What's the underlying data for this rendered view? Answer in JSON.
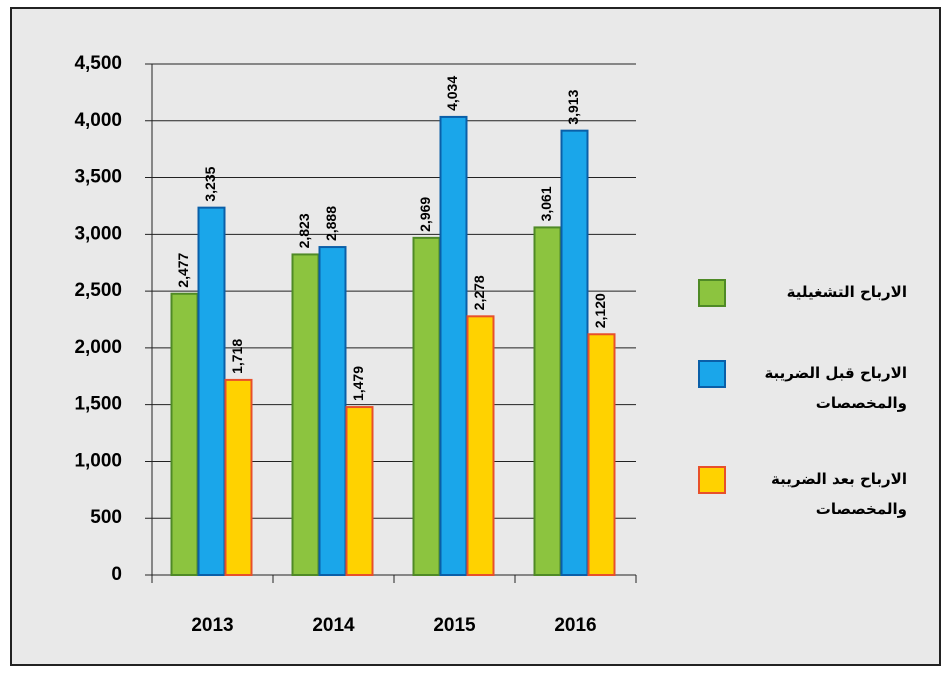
{
  "chart_data": {
    "type": "bar",
    "categories": [
      "2013",
      "2014",
      "2015",
      "2016"
    ],
    "series": [
      {
        "name": "الارباح التشغيلية",
        "color": "#8cc43f",
        "stroke": "#4f8a26",
        "values": [
          2477,
          2823,
          2969,
          3061
        ],
        "value_labels": [
          "2,477",
          "2,823",
          "2,969",
          "3,061"
        ]
      },
      {
        "name": "الارباح قبل الضريبة والمخصصات",
        "color": "#1aa6ea",
        "stroke": "#0a5fa8",
        "values": [
          3235,
          2888,
          4034,
          3913
        ],
        "value_labels": [
          "3,235",
          "2,888",
          "4,034",
          "3,913"
        ]
      },
      {
        "name": "الارباح بعد الضريبة والمخصصات",
        "color": "#ffd200",
        "stroke": "#e8502a",
        "values": [
          1718,
          1479,
          2278,
          2120
        ],
        "value_labels": [
          "1,718",
          "1,479",
          "2,278",
          "2,120"
        ]
      }
    ],
    "ylim": [
      0,
      4500
    ],
    "yticks": [
      0,
      500,
      {
        "value": 1000,
        "label": "1,000"
      },
      {
        "value": 1500,
        "label": "1,500"
      },
      {
        "value": 2000,
        "label": "2,000"
      },
      {
        "value": 2500,
        "label": "2,500"
      },
      {
        "value": 3000,
        "label": "3,000"
      },
      {
        "value": 3500,
        "label": "3,500"
      },
      {
        "value": 4000,
        "label": "4,000"
      },
      {
        "value": 4500,
        "label": "4,500"
      }
    ],
    "grid": true,
    "legend": "right"
  }
}
